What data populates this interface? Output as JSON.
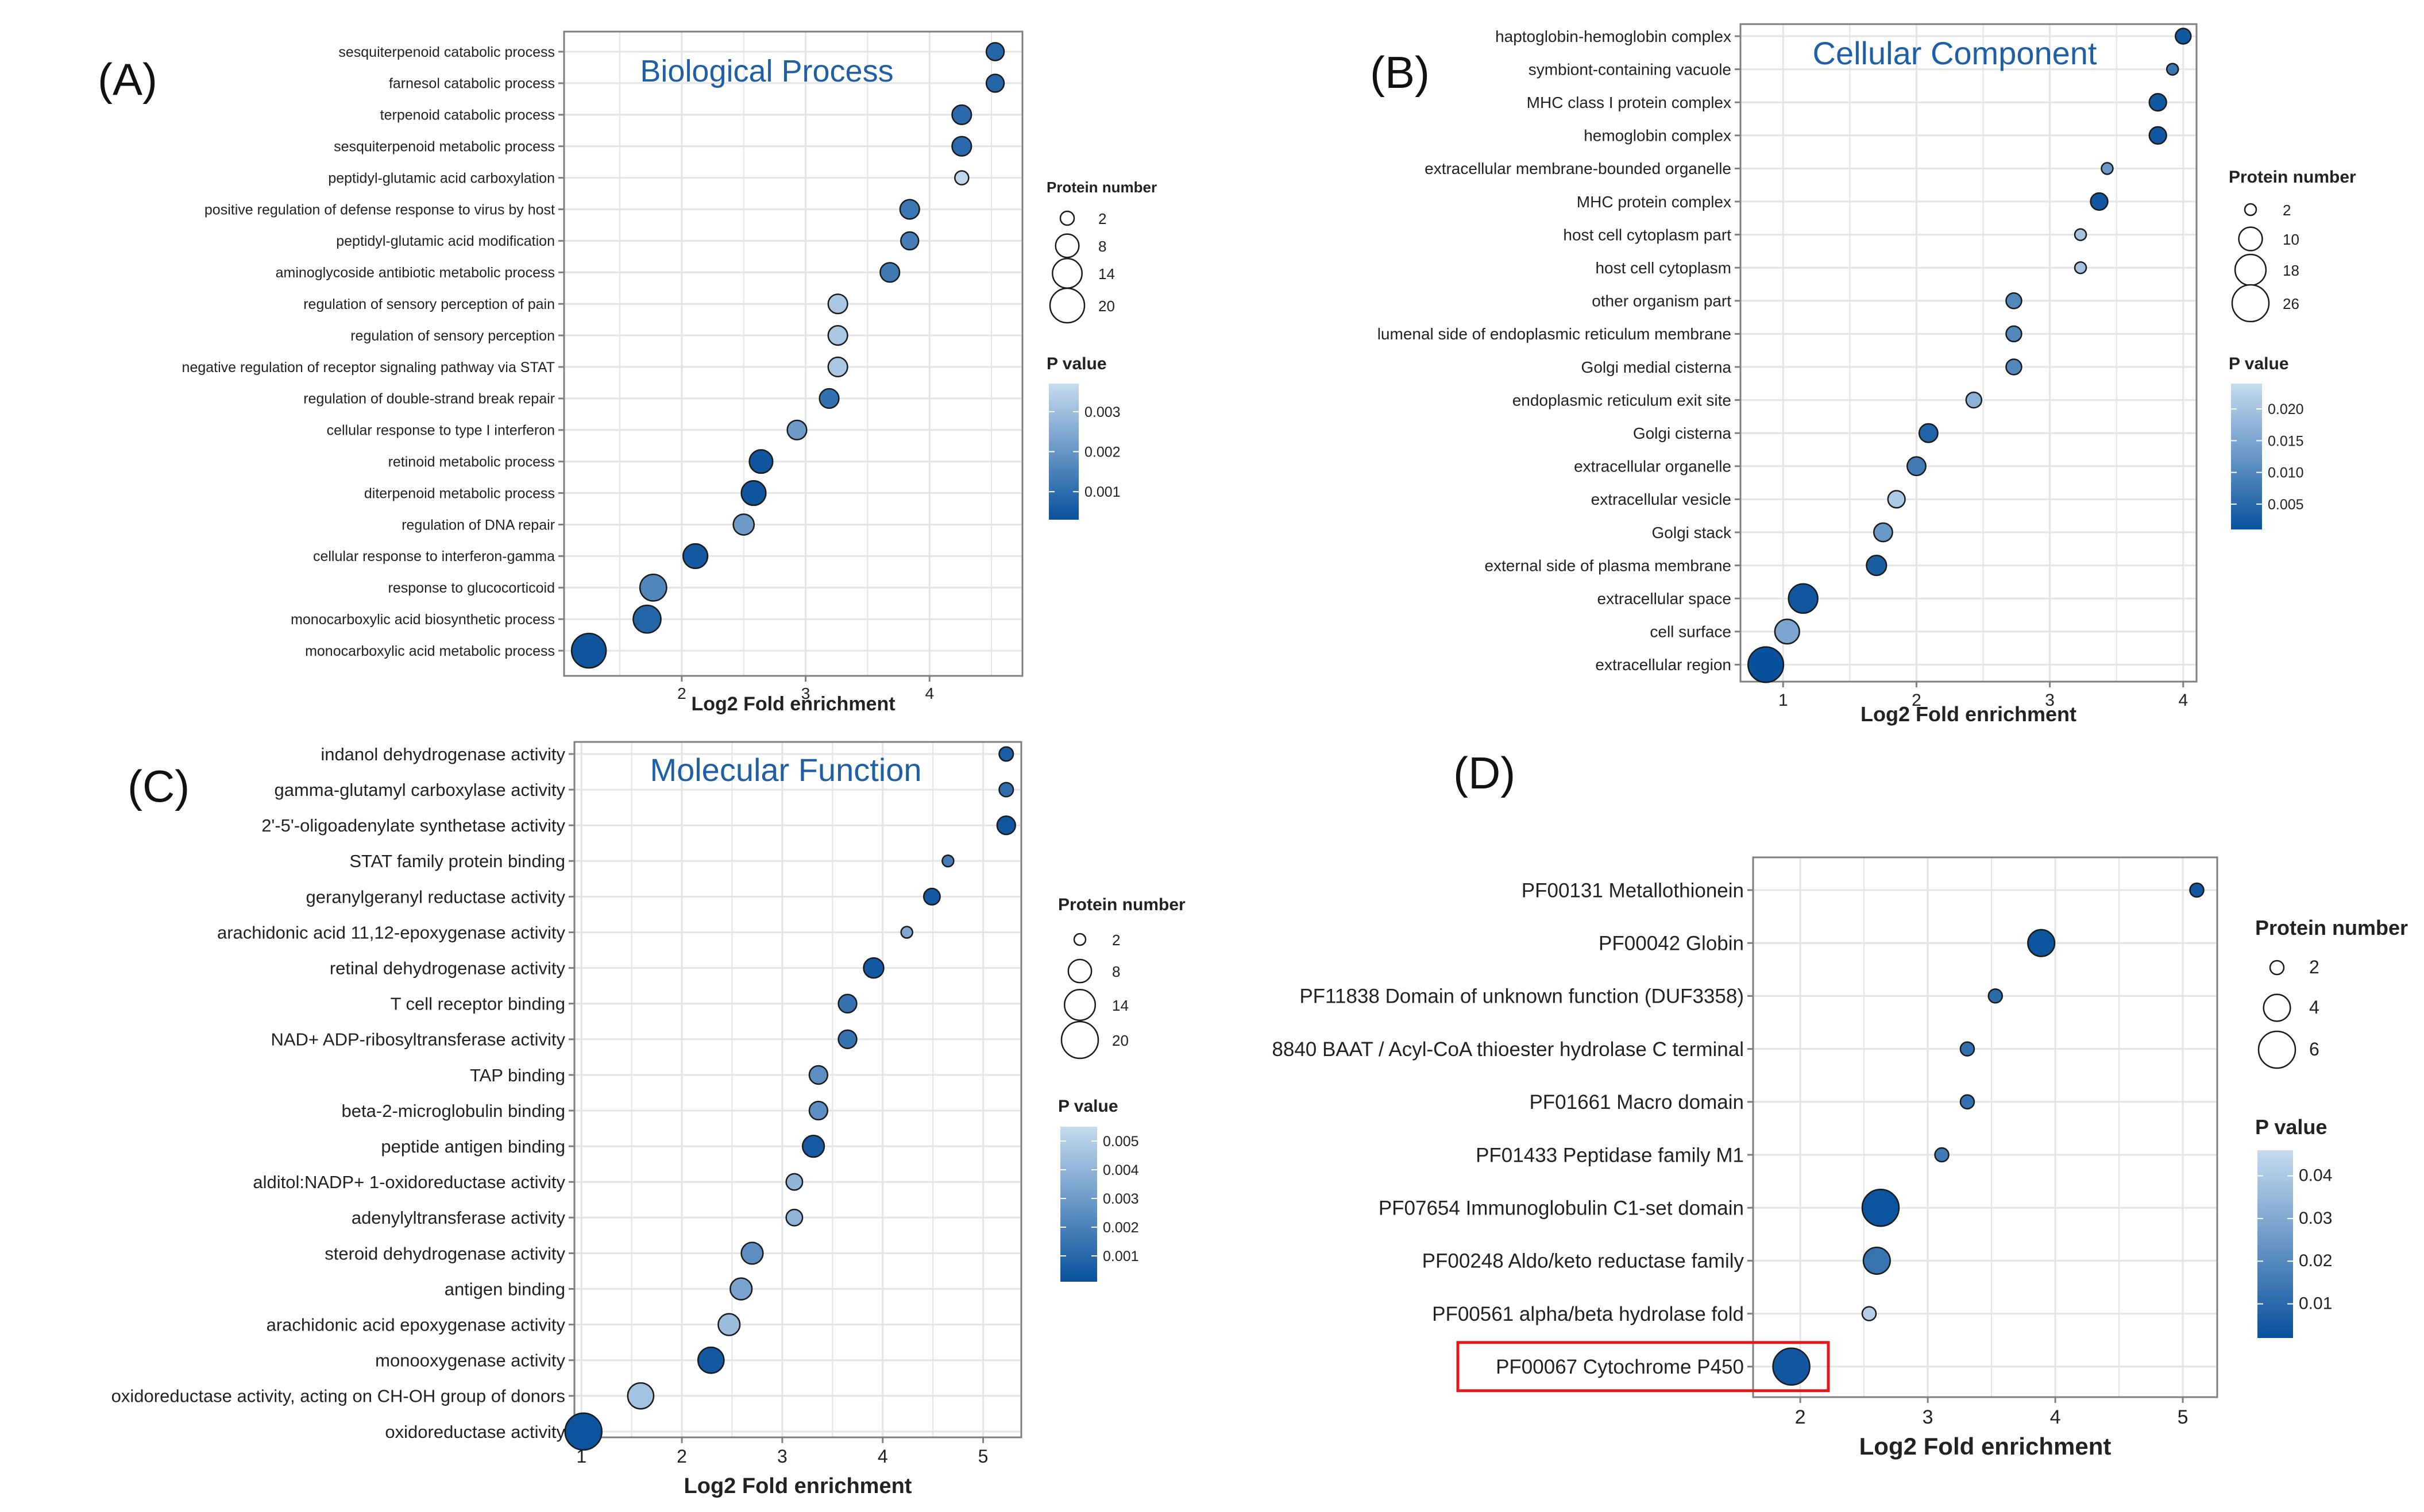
{
  "colors": {
    "dot_dark": "#08519c",
    "dot_light": "#c6dbef",
    "grid": "#e4e4e4",
    "frame": "#7f7f7f",
    "title": "#1f5fa6",
    "highlight": "#e0181b",
    "text": "#222222"
  },
  "chart_data": [
    {
      "type": "scatter",
      "panel_label": "(A)",
      "title": "Biological Process",
      "xlabel": "Log2 Fold enrichment",
      "xlim": [
        1.05,
        4.75
      ],
      "xticks": [
        2,
        3,
        4
      ],
      "xtick_labels": [
        "2",
        "3",
        "4"
      ],
      "size_legend_title": "Protein number",
      "size_legend": [
        2,
        8,
        14,
        20
      ],
      "size_range": [
        2,
        20
      ],
      "color_legend_title": "P value",
      "p_range": [
        0.0003,
        0.0037
      ],
      "color_ticks": [
        0.003,
        0.002,
        0.001
      ],
      "color_tick_labels": [
        "0.003",
        "0.002",
        "0.001"
      ],
      "points": [
        {
          "term": "sesquiterpenoid catabolic process",
          "x": 4.53,
          "count": 4,
          "p": 0.0008
        },
        {
          "term": "farnesol catabolic process",
          "x": 4.53,
          "count": 4,
          "p": 0.0008
        },
        {
          "term": "terpenoid catabolic process",
          "x": 4.26,
          "count": 5,
          "p": 0.0009
        },
        {
          "term": "sesquiterpenoid metabolic process",
          "x": 4.26,
          "count": 5,
          "p": 0.0009
        },
        {
          "term": "peptidyl-glutamic acid carboxylation",
          "x": 4.26,
          "count": 2,
          "p": 0.0036
        },
        {
          "term": "positive regulation of defense response to virus by host",
          "x": 3.84,
          "count": 5,
          "p": 0.0012
        },
        {
          "term": "peptidyl-glutamic acid modification",
          "x": 3.84,
          "count": 4,
          "p": 0.0014
        },
        {
          "term": "aminoglycoside antibiotic metabolic process",
          "x": 3.68,
          "count": 5,
          "p": 0.0013
        },
        {
          "term": "regulation of sensory perception of pain",
          "x": 3.26,
          "count": 5,
          "p": 0.0032
        },
        {
          "term": "regulation of sensory perception",
          "x": 3.26,
          "count": 5,
          "p": 0.0032
        },
        {
          "term": "negative regulation of receptor signaling pathway via STAT",
          "x": 3.26,
          "count": 5,
          "p": 0.0032
        },
        {
          "term": "regulation of double-strand break repair",
          "x": 3.19,
          "count": 5,
          "p": 0.0011
        },
        {
          "term": "cellular response to type I interferon",
          "x": 2.93,
          "count": 5,
          "p": 0.0021
        },
        {
          "term": "retinoid metabolic process",
          "x": 2.64,
          "count": 8,
          "p": 0.0004
        },
        {
          "term": "diterpenoid metabolic process",
          "x": 2.58,
          "count": 9,
          "p": 0.0004
        },
        {
          "term": "regulation of DNA repair",
          "x": 2.5,
          "count": 6,
          "p": 0.0021
        },
        {
          "term": "cellular response to interferon-gamma",
          "x": 2.11,
          "count": 9,
          "p": 0.0005
        },
        {
          "term": "response to glucocorticoid",
          "x": 1.77,
          "count": 11,
          "p": 0.0016
        },
        {
          "term": "monocarboxylic acid biosynthetic process",
          "x": 1.72,
          "count": 12,
          "p": 0.0008
        },
        {
          "term": "monocarboxylic acid metabolic process",
          "x": 1.25,
          "count": 20,
          "p": 0.0004
        }
      ]
    },
    {
      "type": "scatter",
      "panel_label": "(B)",
      "title": "Cellular Component",
      "xlabel": "Log2 Fold enrichment",
      "xlim": [
        0.68,
        4.1
      ],
      "xticks": [
        1,
        2,
        3,
        4
      ],
      "xtick_labels": [
        "1",
        "2",
        "3",
        "4"
      ],
      "size_legend_title": "Protein number",
      "size_legend": [
        2,
        10,
        18,
        26
      ],
      "size_range": [
        2,
        26
      ],
      "color_legend_title": "P value",
      "p_range": [
        0.001,
        0.024
      ],
      "color_ticks": [
        0.02,
        0.015,
        0.01,
        0.005
      ],
      "color_tick_labels": [
        "0.020",
        "0.015",
        "0.010",
        "0.005"
      ],
      "points": [
        {
          "term": "haptoglobin-hemoglobin complex",
          "x": 4.0,
          "count": 4,
          "p": 0.002
        },
        {
          "term": "symbiont-containing vacuole",
          "x": 3.92,
          "count": 2,
          "p": 0.007
        },
        {
          "term": "MHC class I protein complex",
          "x": 3.81,
          "count": 5,
          "p": 0.002
        },
        {
          "term": "hemoglobin complex",
          "x": 3.81,
          "count": 5,
          "p": 0.002
        },
        {
          "term": "extracellular membrane-bounded organelle",
          "x": 3.43,
          "count": 2,
          "p": 0.013
        },
        {
          "term": "MHC protein complex",
          "x": 3.37,
          "count": 5,
          "p": 0.002
        },
        {
          "term": "host cell cytoplasm part",
          "x": 3.23,
          "count": 2,
          "p": 0.02
        },
        {
          "term": "host cell cytoplasm",
          "x": 3.23,
          "count": 2,
          "p": 0.02
        },
        {
          "term": "other organism part",
          "x": 2.73,
          "count": 4,
          "p": 0.01
        },
        {
          "term": "lumenal side of endoplasmic reticulum membrane",
          "x": 2.73,
          "count": 4,
          "p": 0.01
        },
        {
          "term": "Golgi medial cisterna",
          "x": 2.73,
          "count": 4,
          "p": 0.01
        },
        {
          "term": "endoplasmic reticulum exit site",
          "x": 2.43,
          "count": 4,
          "p": 0.017
        },
        {
          "term": "Golgi cisterna",
          "x": 2.09,
          "count": 6,
          "p": 0.004
        },
        {
          "term": "extracellular organelle",
          "x": 2.0,
          "count": 6,
          "p": 0.008
        },
        {
          "term": "extracellular vesicle",
          "x": 1.85,
          "count": 5,
          "p": 0.021
        },
        {
          "term": "Golgi stack",
          "x": 1.75,
          "count": 6,
          "p": 0.013
        },
        {
          "term": "external side of plasma membrane",
          "x": 1.7,
          "count": 7,
          "p": 0.003
        },
        {
          "term": "extracellular space",
          "x": 1.15,
          "count": 16,
          "p": 0.002
        },
        {
          "term": "cell surface",
          "x": 1.03,
          "count": 11,
          "p": 0.015
        },
        {
          "term": "extracellular region",
          "x": 0.87,
          "count": 24,
          "p": 0.001
        }
      ]
    },
    {
      "type": "scatter",
      "panel_label": "(C)",
      "title": "Molecular Function",
      "xlabel": "Log2 Fold enrichment",
      "xlim": [
        0.93,
        5.38
      ],
      "xticks": [
        1,
        2,
        3,
        4,
        5
      ],
      "xtick_labels": [
        "1",
        "2",
        "3",
        "4",
        "5"
      ],
      "size_legend_title": "Protein number",
      "size_legend": [
        2,
        8,
        14,
        20
      ],
      "size_range": [
        2,
        20
      ],
      "color_legend_title": "P value",
      "p_range": [
        0.0001,
        0.0055
      ],
      "color_ticks": [
        0.005,
        0.004,
        0.003,
        0.002,
        0.001
      ],
      "color_tick_labels": [
        "0.005",
        "0.004",
        "0.003",
        "0.002",
        "0.001"
      ],
      "points": [
        {
          "term": "indanol dehydrogenase activity",
          "x": 5.23,
          "count": 3,
          "p": 0.0006
        },
        {
          "term": "gamma-glutamyl carboxylase activity",
          "x": 5.23,
          "count": 3,
          "p": 0.0012
        },
        {
          "term": "2'-5'-oligoadenylate synthetase activity",
          "x": 5.23,
          "count": 5,
          "p": 0.0003
        },
        {
          "term": "STAT family protein binding",
          "x": 4.65,
          "count": 2,
          "p": 0.0018
        },
        {
          "term": "geranylgeranyl reductase activity",
          "x": 4.49,
          "count": 4,
          "p": 0.0004
        },
        {
          "term": "arachidonic acid 11,12-epoxygenase activity",
          "x": 4.24,
          "count": 2,
          "p": 0.0035
        },
        {
          "term": "retinal dehydrogenase activity",
          "x": 3.91,
          "count": 6,
          "p": 0.0004
        },
        {
          "term": "T cell receptor binding",
          "x": 3.65,
          "count": 5,
          "p": 0.0014
        },
        {
          "term": "NAD+ ADP-ribosyltransferase activity",
          "x": 3.65,
          "count": 5,
          "p": 0.0014
        },
        {
          "term": "TAP binding",
          "x": 3.36,
          "count": 5,
          "p": 0.0025
        },
        {
          "term": "beta-2-microglobulin binding",
          "x": 3.36,
          "count": 5,
          "p": 0.0025
        },
        {
          "term": "peptide antigen binding",
          "x": 3.31,
          "count": 7,
          "p": 0.0005
        },
        {
          "term": "alditol:NADP+ 1-oxidoreductase activity",
          "x": 3.12,
          "count": 4,
          "p": 0.004
        },
        {
          "term": "adenylyltransferase activity",
          "x": 3.12,
          "count": 4,
          "p": 0.004
        },
        {
          "term": "steroid dehydrogenase activity",
          "x": 2.7,
          "count": 7,
          "p": 0.0025
        },
        {
          "term": "antigen binding",
          "x": 2.59,
          "count": 7,
          "p": 0.0033
        },
        {
          "term": "arachidonic acid epoxygenase activity",
          "x": 2.47,
          "count": 7,
          "p": 0.0043
        },
        {
          "term": "monooxygenase activity",
          "x": 2.29,
          "count": 10,
          "p": 0.0004
        },
        {
          "term": "oxidoreductase activity, acting on CH-OH group of donors",
          "x": 1.59,
          "count": 10,
          "p": 0.0045
        },
        {
          "term": "oxidoreductase activity",
          "x": 1.02,
          "count": 20,
          "p": 0.0002
        }
      ]
    },
    {
      "type": "scatter",
      "panel_label": "(D)",
      "title": "",
      "xlabel": "Log2 Fold enrichment",
      "xlim": [
        1.63,
        5.27
      ],
      "xticks": [
        2,
        3,
        4,
        5
      ],
      "xtick_labels": [
        "2",
        "3",
        "4",
        "5"
      ],
      "size_legend_title": "Protein number",
      "size_legend": [
        2,
        4,
        6
      ],
      "size_range": [
        2,
        6
      ],
      "color_legend_title": "P value",
      "p_range": [
        0.002,
        0.046
      ],
      "color_ticks": [
        0.04,
        0.03,
        0.02,
        0.01
      ],
      "color_tick_labels": [
        "0.04",
        "0.03",
        "0.02",
        "0.01"
      ],
      "highlight_term": "PF00067 Cytochrome P450",
      "points": [
        {
          "term": "PF00131 Metallothionein",
          "x": 5.11,
          "count": 2,
          "p": 0.004
        },
        {
          "term": "PF00042 Globin",
          "x": 3.89,
          "count": 4,
          "p": 0.003
        },
        {
          "term": "PF11838 Domain of unknown function (DUF3358)",
          "x": 3.53,
          "count": 2,
          "p": 0.01
        },
        {
          "term": "8840 BAAT / Acyl-CoA thioester hydrolase C terminal",
          "x": 3.31,
          "count": 2,
          "p": 0.012
        },
        {
          "term": "PF01661 Macro domain",
          "x": 3.31,
          "count": 2,
          "p": 0.012
        },
        {
          "term": "PF01433 Peptidase family M1",
          "x": 3.11,
          "count": 2,
          "p": 0.015
        },
        {
          "term": "PF07654 Immunoglobulin C1-set domain",
          "x": 2.63,
          "count": 6,
          "p": 0.003
        },
        {
          "term": "PF00248 Aldo/keto reductase family",
          "x": 2.6,
          "count": 4,
          "p": 0.013
        },
        {
          "term": "PF00561 alpha/beta hydrolase fold",
          "x": 2.54,
          "count": 2,
          "p": 0.042
        },
        {
          "term": "PF00067 Cytochrome P450",
          "x": 1.93,
          "count": 6,
          "p": 0.004
        }
      ]
    }
  ]
}
